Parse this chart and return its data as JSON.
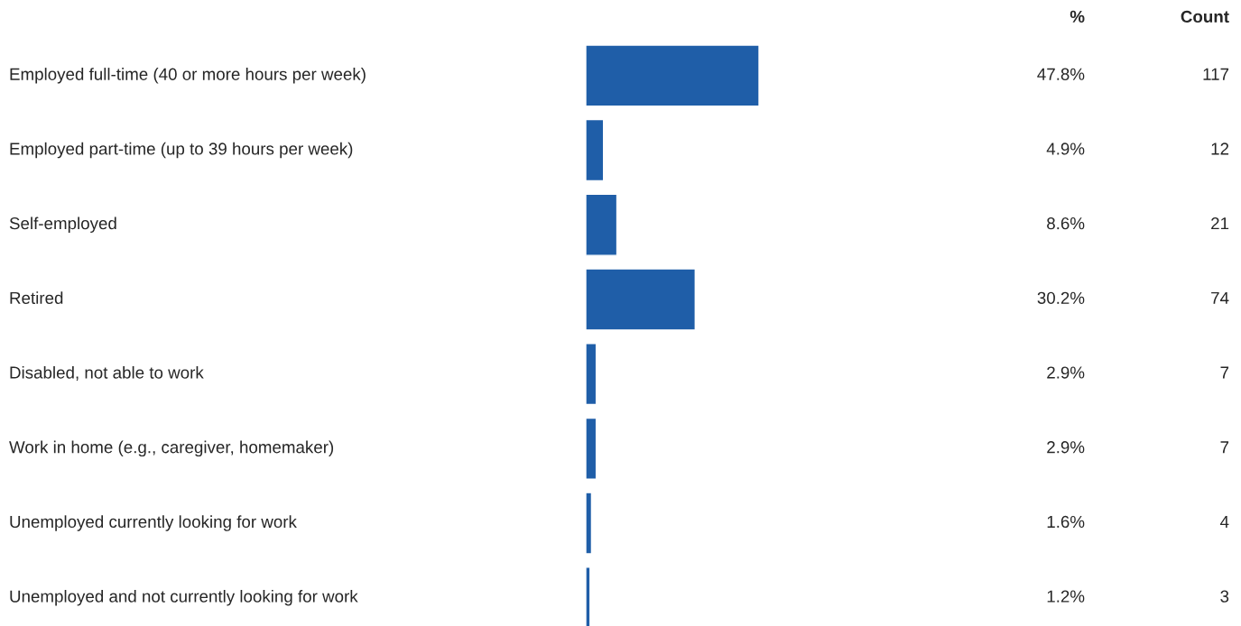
{
  "chart_data": {
    "type": "bar",
    "orientation": "horizontal",
    "categories": [
      "Employed full-time (40 or more hours per week)",
      "Employed part-time (up to 39 hours per week)",
      "Self-employed",
      "Retired",
      "Disabled, not able to work",
      "Work in home (e.g., caregiver, homemaker)",
      "Unemployed currently looking for work",
      "Unemployed and not currently looking for work"
    ],
    "series": [
      {
        "name": "%",
        "color": "#1f5ea8",
        "values": [
          47.8,
          4.9,
          8.6,
          30.2,
          2.9,
          2.9,
          1.6,
          1.2
        ],
        "value_labels": [
          "47.8%",
          "4.9%",
          "8.6%",
          "30.2%",
          "2.9%",
          "2.9%",
          "1.6%",
          "1.2%"
        ]
      }
    ],
    "annotations": [
      "Count",
      "117",
      "12",
      "21",
      "74",
      "7",
      "7",
      "4",
      "3"
    ]
  }
}
